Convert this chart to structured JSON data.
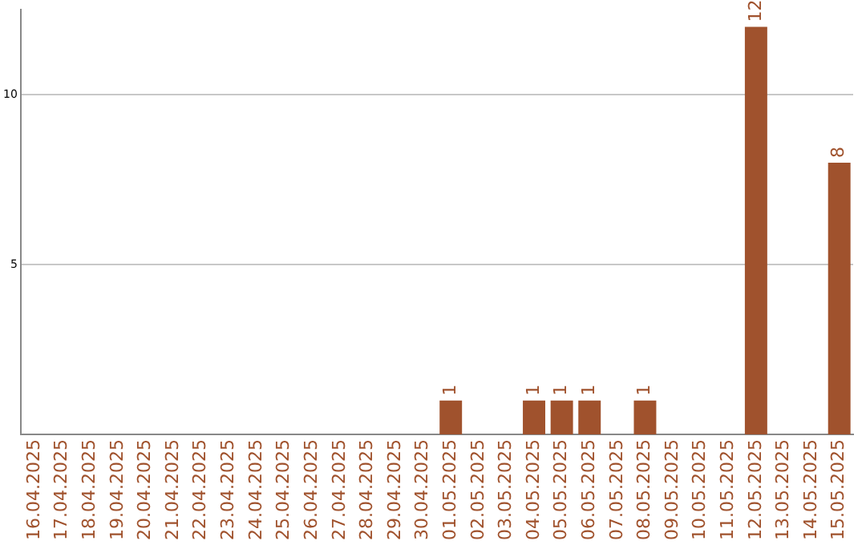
{
  "chart_data": {
    "type": "bar",
    "categories": [
      "16.04.2025",
      "17.04.2025",
      "18.04.2025",
      "19.04.2025",
      "20.04.2025",
      "21.04.2025",
      "22.04.2025",
      "23.04.2025",
      "24.04.2025",
      "25.04.2025",
      "26.04.2025",
      "27.04.2025",
      "28.04.2025",
      "29.04.2025",
      "30.04.2025",
      "01.05.2025",
      "02.05.2025",
      "03.05.2025",
      "04.05.2025",
      "05.05.2025",
      "06.05.2025",
      "07.05.2025",
      "08.05.2025",
      "09.05.2025",
      "10.05.2025",
      "11.05.2025",
      "12.05.2025",
      "13.05.2025",
      "14.05.2025",
      "15.05.2025"
    ],
    "values": [
      0,
      0,
      0,
      0,
      0,
      0,
      0,
      0,
      0,
      0,
      0,
      0,
      0,
      0,
      0,
      1,
      0,
      0,
      1,
      1,
      1,
      0,
      1,
      0,
      0,
      0,
      12,
      0,
      0,
      8
    ],
    "value_labels": [
      null,
      null,
      null,
      null,
      null,
      null,
      null,
      null,
      null,
      null,
      null,
      null,
      null,
      null,
      null,
      "1",
      null,
      null,
      "1",
      "1",
      "1",
      null,
      "1",
      null,
      null,
      null,
      "12",
      null,
      null,
      "8"
    ],
    "color": "#a0522d",
    "ylim": [
      0,
      12.5
    ],
    "yticks": [
      5,
      10
    ],
    "grid": "y",
    "legend": false
  }
}
